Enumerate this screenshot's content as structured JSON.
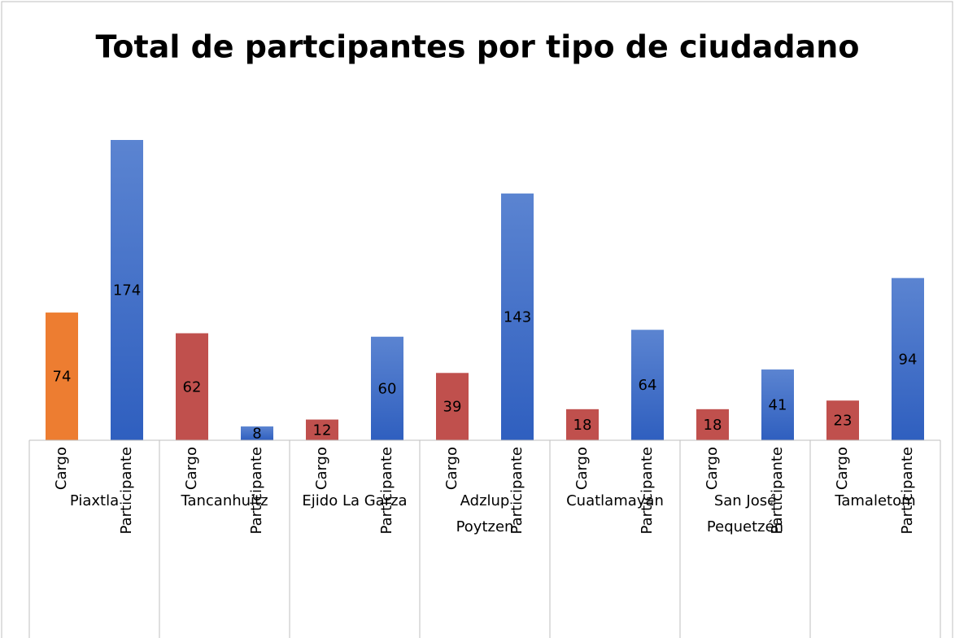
{
  "chart_data": {
    "type": "bar",
    "title": "Total de partcipantes por tipo de ciudadano",
    "groups": [
      {
        "name": "Piaxtla",
        "categories": [
          "Cargo",
          "Participante"
        ],
        "values": [
          74,
          174
        ],
        "colors": [
          "#ed7d31",
          "#4472c4"
        ]
      },
      {
        "name": "Tancanhuitz",
        "categories": [
          "Cargo",
          "Participante"
        ],
        "values": [
          62,
          8
        ],
        "colors": [
          "#c0504d",
          "#4472c4"
        ]
      },
      {
        "name": "Ejido La Garza",
        "categories": [
          "Cargo",
          "Participante"
        ],
        "values": [
          12,
          60
        ],
        "colors": [
          "#c0504d",
          "#4472c4"
        ]
      },
      {
        "name": "Adzlup\nPoytzen",
        "categories": [
          "Cargo",
          "Participante"
        ],
        "values": [
          39,
          143
        ],
        "colors": [
          "#c0504d",
          "#4472c4"
        ]
      },
      {
        "name": "Cuatlamayan",
        "categories": [
          "Cargo",
          "Participante"
        ],
        "values": [
          18,
          64
        ],
        "colors": [
          "#c0504d",
          "#4472c4"
        ]
      },
      {
        "name": "San José\nPequetzén",
        "categories": [
          "Cargo",
          "Participante"
        ],
        "values": [
          18,
          41
        ],
        "colors": [
          "#c0504d",
          "#4472c4"
        ]
      },
      {
        "name": "Tamaletom",
        "categories": [
          "Cargo",
          "Participante"
        ],
        "values": [
          23,
          94
        ],
        "colors": [
          "#c0504d",
          "#4472c4"
        ]
      }
    ]
  }
}
